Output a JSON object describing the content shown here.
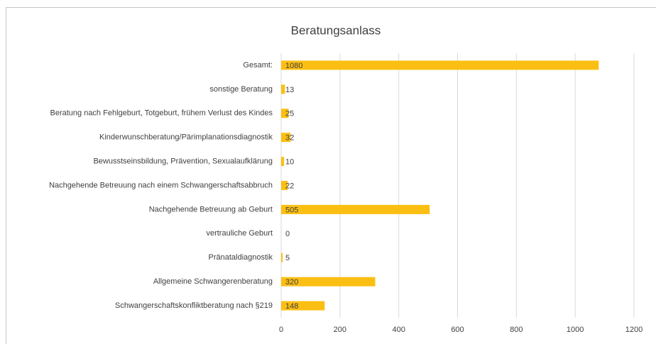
{
  "chart_data": {
    "type": "bar",
    "orientation": "horizontal",
    "title": "Beratungsanlass",
    "categories": [
      "Gesamt:",
      "sonstige Beratung",
      "Beratung nach Fehlgeburt, Totgeburt, frühem Verlust des Kindes",
      "Kinderwunschberatung/Pärimplanationsdiagnostik",
      "Bewusstseinsbildung, Prävention, Sexualaufklärung",
      "Nachgehende Betreuung nach einem Schwangerschaftsabbruch",
      "Nachgehende Betreuung ab Geburt",
      "vertrauliche Geburt",
      "Pränataldiagnostik",
      "Allgemeine Schwangerenberatung",
      "Schwangerschaftskonfliktberatung nach §219"
    ],
    "values": [
      1080,
      13,
      25,
      32,
      10,
      22,
      505,
      0,
      5,
      320,
      148
    ],
    "color": "#fbbf13",
    "xlim": [
      0,
      1200
    ],
    "xticks": [
      0,
      200,
      400,
      600,
      800,
      1000,
      1200
    ],
    "grid": true
  }
}
